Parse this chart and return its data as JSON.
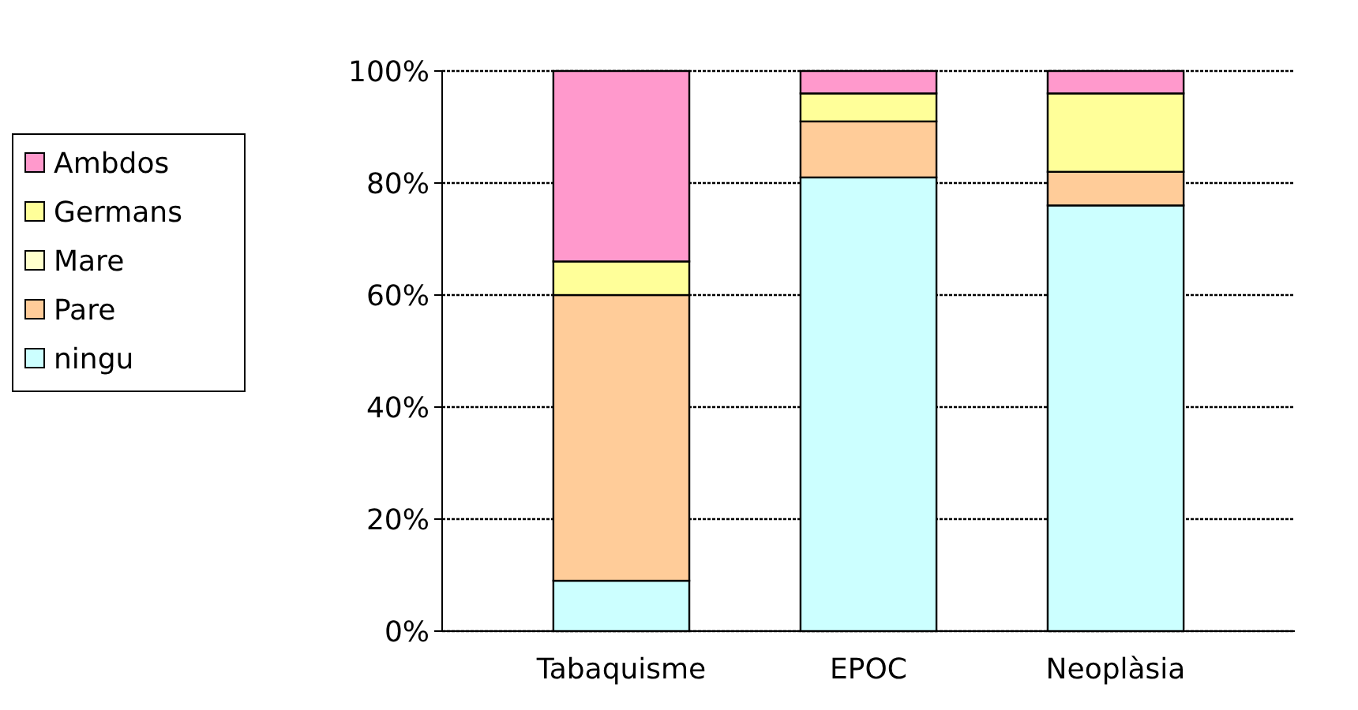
{
  "chart_data": {
    "type": "bar",
    "stacked": true,
    "categories": [
      "Tabaquisme",
      "EPOC",
      "Neoplàsia"
    ],
    "series": [
      {
        "name": "ningu",
        "color": "#ccffff",
        "values": [
          9,
          81,
          76
        ]
      },
      {
        "name": "Pare",
        "color": "#ffcc99",
        "values": [
          51,
          10,
          6
        ]
      },
      {
        "name": "Mare",
        "color": "#ffffcc",
        "values": [
          0,
          0,
          0
        ]
      },
      {
        "name": "Germans",
        "color": "#ffff99",
        "values": [
          6,
          5,
          14
        ]
      },
      {
        "name": "Ambdos",
        "color": "#ff99cc",
        "values": [
          34,
          4,
          4
        ]
      }
    ],
    "ylim": [
      0,
      100
    ],
    "yticks": [
      {
        "value": 0,
        "label": "0%"
      },
      {
        "value": 20,
        "label": "20%"
      },
      {
        "value": 40,
        "label": "40%"
      },
      {
        "value": 60,
        "label": "60%"
      },
      {
        "value": 80,
        "label": "80%"
      },
      {
        "value": 100,
        "label": "100%"
      }
    ],
    "grid": "y",
    "legend": "left"
  }
}
